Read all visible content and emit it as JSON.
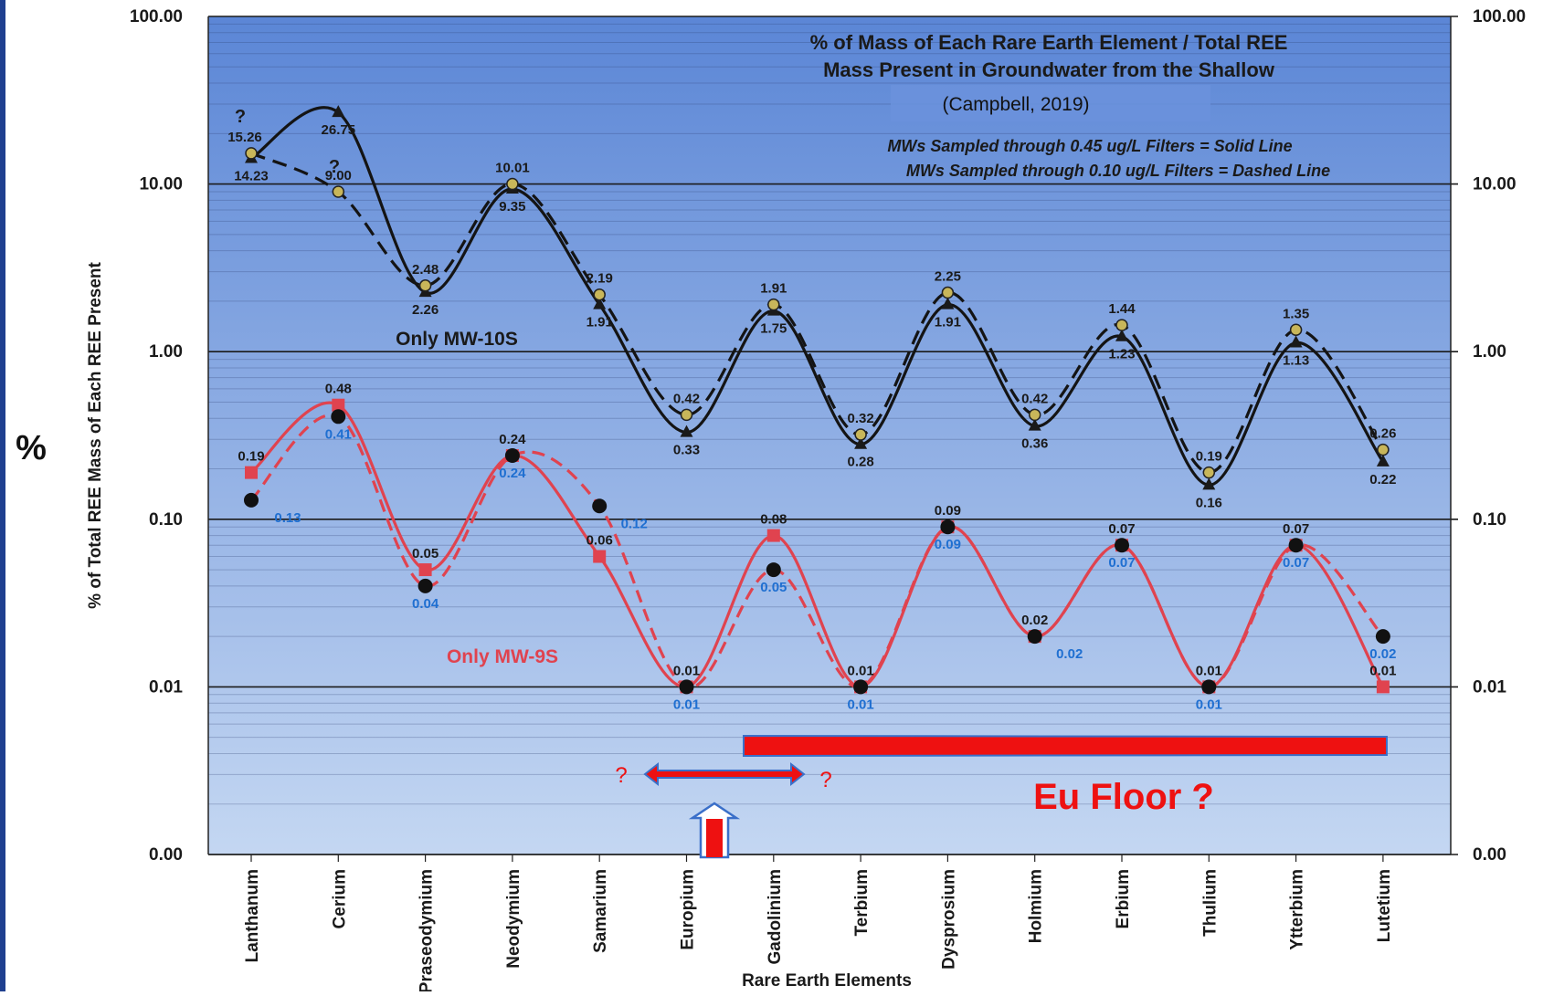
{
  "chart_data": {
    "type": "line",
    "scale": "log",
    "title_lines": [
      "% of Mass of Each Rare Earth Element / Total REE",
      "Mass Present in Groundwater from the Shallow"
    ],
    "source": "(Campbell, 2019)",
    "notes": [
      "MWs Sampled through 0.45 ug/L Filters = Solid Line",
      "MWs Sampled through 0.10 ug/L Filters = Dashed Line"
    ],
    "xlabel": "Rare Earth Elements",
    "ylabel": "% of Total REE Mass of Each REE Present",
    "ylabel_symbol": "%",
    "yticks": [
      {
        "value": 100,
        "label": "100.00"
      },
      {
        "value": 10,
        "label": "10.00"
      },
      {
        "value": 1,
        "label": "1.00"
      },
      {
        "value": 0.1,
        "label": "0.10"
      },
      {
        "value": 0.01,
        "label": "0.01"
      },
      {
        "value": 0.001,
        "label": "0.00"
      }
    ],
    "categories": [
      "Lanthanum",
      "Cerium",
      "Praseodymium",
      "Neodymium",
      "Samarium",
      "Europium",
      "Gadolinium",
      "Terbium",
      "Dysprosium",
      "Holmium",
      "Erbium",
      "Thulium",
      "Ytterbium",
      "Lutetium"
    ],
    "series": [
      {
        "name": "Only MW-10S",
        "filter": "solid",
        "values": [
          14.23,
          26.75,
          2.26,
          9.35,
          1.91,
          0.33,
          1.75,
          0.28,
          1.91,
          0.36,
          1.23,
          0.16,
          1.13,
          0.22
        ],
        "labels": [
          "14.23",
          "26.75",
          "2.26",
          "9.35",
          "1.91",
          "0.33",
          "1.75",
          "0.28",
          "1.91",
          "0.36",
          "1.23",
          "0.16",
          "1.13",
          "0.22"
        ]
      },
      {
        "name": "",
        "filter": "dashed",
        "values": [
          15.26,
          9.0,
          2.48,
          10.01,
          2.19,
          0.42,
          1.91,
          0.32,
          2.25,
          0.42,
          1.44,
          0.19,
          1.35,
          0.26
        ],
        "labels": [
          "15.26",
          "9.00",
          "2.48",
          "10.01",
          "2.19",
          "0.42",
          "1.91",
          "0.32",
          "2.25",
          "0.42",
          "1.44",
          "0.19",
          "1.35",
          "0.26"
        ]
      },
      {
        "name": "Only MW-9S",
        "filter": "solid",
        "values": [
          0.19,
          0.48,
          0.05,
          0.24,
          0.06,
          0.01,
          0.08,
          0.01,
          0.09,
          0.02,
          0.07,
          0.01,
          0.07,
          0.01
        ],
        "labels": [
          "0.19",
          "0.48",
          "0.05",
          "0.24",
          "0.06",
          "0.01",
          "0.08",
          "0.01",
          "0.09",
          "0.02",
          "0.07",
          "0.01",
          "0.07",
          "0.01"
        ]
      },
      {
        "name": "",
        "filter": "dashed",
        "values": [
          0.13,
          0.41,
          0.04,
          0.24,
          0.12,
          0.01,
          0.05,
          0.01,
          0.09,
          0.02,
          0.07,
          0.01,
          0.07,
          0.02
        ],
        "labels": [
          "0.13",
          "0.41",
          "0.04",
          "0.24",
          "0.12",
          "0.01",
          "0.05",
          "0.01",
          "0.09",
          "0.02",
          "0.07",
          "0.01",
          "0.07",
          "0.02"
        ]
      }
    ],
    "question_marks": [
      "?",
      "?",
      "?",
      "?"
    ],
    "annotation": "Eu Floor ?",
    "colors": {
      "plot_top": "#5b86d6",
      "plot_bottom": "#c4d7f2",
      "mw10s": "#141414",
      "mw9s": "#e0434f",
      "dashed_labels_9s": "#1f6fd1",
      "annotation": "#ee1111",
      "arrow_outline": "#3a6fc9"
    }
  }
}
